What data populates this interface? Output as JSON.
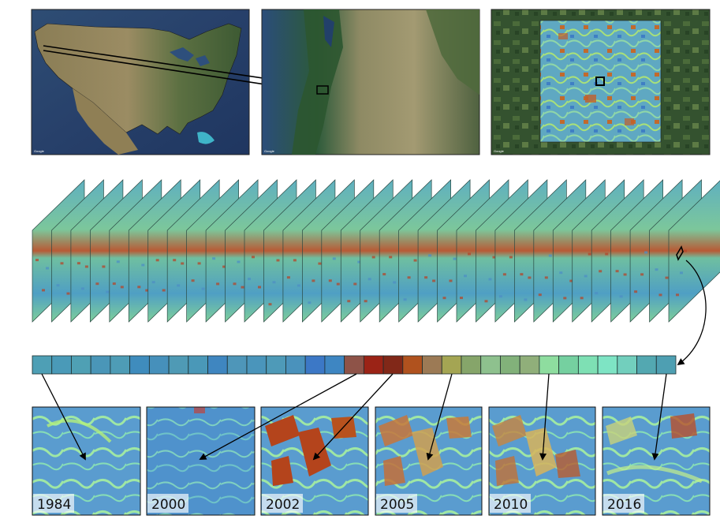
{
  "maps": {
    "attribution": "Google",
    "panels": [
      "us-overview",
      "pacific-northwest",
      "study-area"
    ]
  },
  "timeline": {
    "cells": [
      {
        "color": "#4e9fb5"
      },
      {
        "color": "#4a9ab8"
      },
      {
        "color": "#4fa0b4"
      },
      {
        "color": "#4a96b8"
      },
      {
        "color": "#4e9cb6"
      },
      {
        "color": "#3f8cbd"
      },
      {
        "color": "#4690bb"
      },
      {
        "color": "#4f9ab5"
      },
      {
        "color": "#4a98b8"
      },
      {
        "color": "#3f86c0"
      },
      {
        "color": "#4e96b9"
      },
      {
        "color": "#4a95bb"
      },
      {
        "color": "#4e9ab8"
      },
      {
        "color": "#4a92bc"
      },
      {
        "color": "#3c78c6"
      },
      {
        "color": "#3e86c2"
      },
      {
        "color": "#8e5348"
      },
      {
        "color": "#9b2316"
      },
      {
        "color": "#812818"
      },
      {
        "color": "#b0521e"
      },
      {
        "color": "#9c7a55"
      },
      {
        "color": "#a4a553"
      },
      {
        "color": "#86a56a"
      },
      {
        "color": "#8ec18e"
      },
      {
        "color": "#82b17a"
      },
      {
        "color": "#90af7a"
      },
      {
        "color": "#8edd9f"
      },
      {
        "color": "#75d0a0"
      },
      {
        "color": "#7ee0b4"
      },
      {
        "color": "#7ee4c4"
      },
      {
        "color": "#72cfbd"
      },
      {
        "color": "#53a8b1"
      },
      {
        "color": "#4e9fb2"
      }
    ]
  },
  "stack": {
    "frame_count": 34
  },
  "thumbnails": [
    {
      "year": "1984",
      "kind": "undisturbed"
    },
    {
      "year": "2000",
      "kind": "undisturbed"
    },
    {
      "year": "2002",
      "kind": "disturbance"
    },
    {
      "year": "2005",
      "kind": "recovery-early"
    },
    {
      "year": "2010",
      "kind": "recovery-mid"
    },
    {
      "year": "2016",
      "kind": "recovered"
    }
  ],
  "colors": {
    "stack_base": "#69b9a8",
    "stack_blue": "#4d8fc4",
    "stack_red": "#b4462a",
    "ocean": "#24406e",
    "land": "#7f7b52",
    "forest": "#2f4e2c"
  }
}
